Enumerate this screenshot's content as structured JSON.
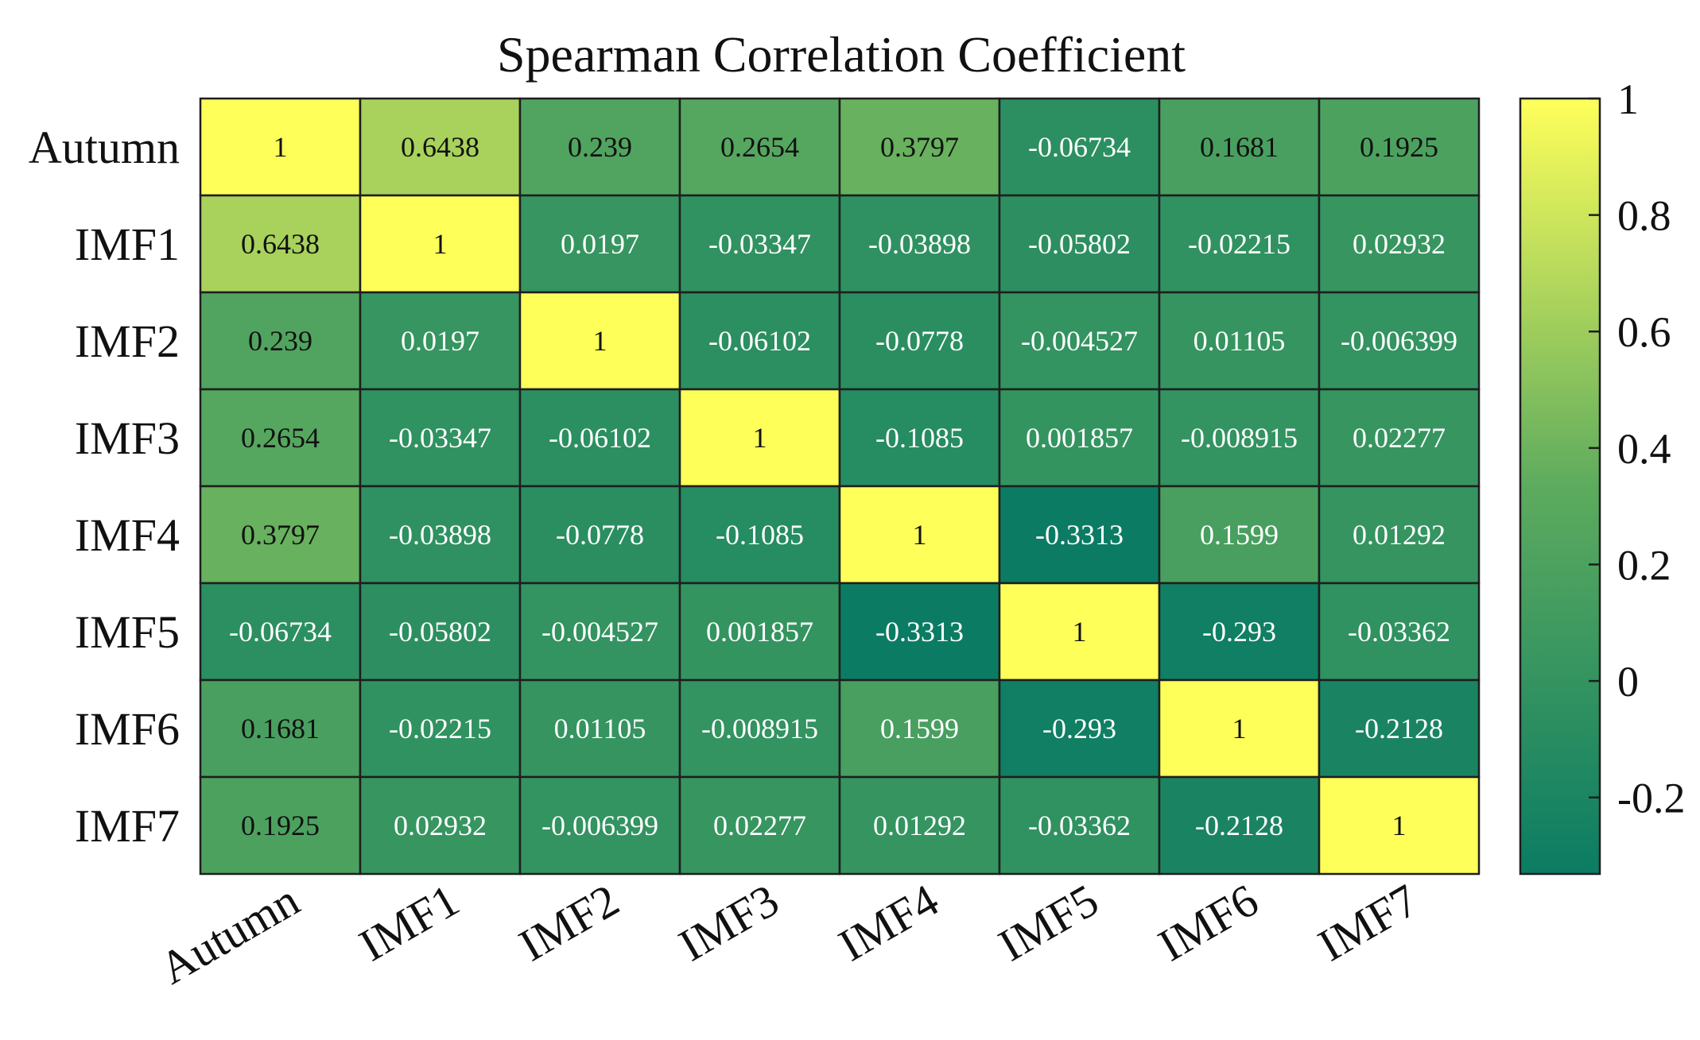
{
  "chart_data": {
    "type": "heatmap",
    "title": "Spearman Correlation Coefficient",
    "row_labels": [
      "Autumn",
      "IMF1",
      "IMF2",
      "IMF3",
      "IMF4",
      "IMF5",
      "IMF6",
      "IMF7"
    ],
    "col_labels": [
      "Autumn",
      "IMF1",
      "IMF2",
      "IMF3",
      "IMF4",
      "IMF5",
      "IMF6",
      "IMF7"
    ],
    "values": [
      [
        "1",
        "0.6438",
        "0.239",
        "0.2654",
        "0.3797",
        "-0.06734",
        "0.1681",
        "0.1925"
      ],
      [
        "0.6438",
        "1",
        "0.0197",
        "-0.03347",
        "-0.03898",
        "-0.05802",
        "-0.02215",
        "0.02932"
      ],
      [
        "0.239",
        "0.0197",
        "1",
        "-0.06102",
        "-0.0778",
        "-0.004527",
        "0.01105",
        "-0.006399"
      ],
      [
        "0.2654",
        "-0.03347",
        "-0.06102",
        "1",
        "-0.1085",
        "0.001857",
        "-0.008915",
        "0.02277"
      ],
      [
        "0.3797",
        "-0.03898",
        "-0.0778",
        "-0.1085",
        "1",
        "-0.3313",
        "0.1599",
        "0.01292"
      ],
      [
        "-0.06734",
        "-0.05802",
        "-0.004527",
        "0.001857",
        "-0.3313",
        "1",
        "-0.293",
        "-0.03362"
      ],
      [
        "0.1681",
        "-0.02215",
        "0.01105",
        "-0.008915",
        "0.1599",
        "-0.293",
        "1",
        "-0.2128"
      ],
      [
        "0.1925",
        "0.02932",
        "-0.006399",
        "0.02277",
        "0.01292",
        "-0.03362",
        "-0.2128",
        "1"
      ]
    ],
    "colorbar": {
      "range": [
        -0.3313,
        1
      ],
      "ticks": [
        -0.2,
        0,
        0.2,
        0.4,
        0.6,
        0.8,
        1
      ],
      "tick_labels": [
        "-0.2",
        "0",
        "0.2",
        "0.4",
        "0.6",
        "0.8",
        "1"
      ],
      "colors": [
        "#0b7c63",
        "#5dab5e",
        "#ffff5a"
      ]
    }
  }
}
